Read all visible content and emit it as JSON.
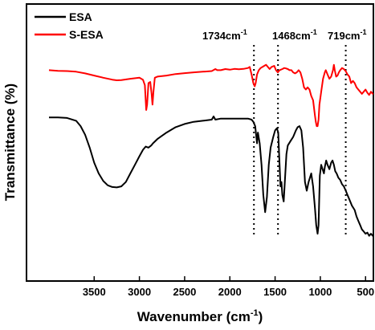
{
  "chart_data": {
    "type": "line",
    "xlabel": "Wavenumber (cm",
    "xlabel_sup": "-1",
    "xlabel_end": ")",
    "ylabel": "Transmittance (%)",
    "xlim": [
      4000,
      400
    ],
    "x_reversed": true,
    "y_ticks_shown": false,
    "xticks": [
      3500,
      3000,
      2500,
      2000,
      1500,
      1000,
      500
    ],
    "legend": {
      "placement": "top-left"
    },
    "annotations": [
      {
        "x": 1734,
        "label": "1734cm",
        "sup": "-1"
      },
      {
        "x": 1468,
        "label": "1468cm",
        "sup": "-1"
      },
      {
        "x": 719,
        "label": "719cm",
        "sup": "-1"
      }
    ],
    "series": [
      {
        "name": "ESA",
        "color": "#000000",
        "points": [
          [
            4000,
            62
          ],
          [
            3900,
            62
          ],
          [
            3800,
            61.8
          ],
          [
            3700,
            60.5
          ],
          [
            3650,
            58
          ],
          [
            3600,
            54
          ],
          [
            3550,
            48
          ],
          [
            3500,
            41
          ],
          [
            3450,
            36
          ],
          [
            3400,
            32.5
          ],
          [
            3350,
            30.5
          ],
          [
            3300,
            29.7
          ],
          [
            3250,
            29.5
          ],
          [
            3200,
            30
          ],
          [
            3150,
            32
          ],
          [
            3100,
            36
          ],
          [
            3050,
            40
          ],
          [
            3000,
            44
          ],
          [
            2960,
            47
          ],
          [
            2930,
            48.5
          ],
          [
            2900,
            48
          ],
          [
            2870,
            49
          ],
          [
            2850,
            50
          ],
          [
            2800,
            52
          ],
          [
            2700,
            55
          ],
          [
            2600,
            57.5
          ],
          [
            2500,
            59
          ],
          [
            2400,
            60
          ],
          [
            2300,
            60.5
          ],
          [
            2200,
            61
          ],
          [
            2180,
            62.5
          ],
          [
            2160,
            61
          ],
          [
            2100,
            61.5
          ],
          [
            2000,
            61.5
          ],
          [
            1900,
            61.5
          ],
          [
            1800,
            61.5
          ],
          [
            1760,
            61
          ],
          [
            1740,
            60
          ],
          [
            1720,
            58
          ],
          [
            1700,
            50
          ],
          [
            1690,
            55
          ],
          [
            1670,
            50
          ],
          [
            1650,
            40
          ],
          [
            1630,
            26
          ],
          [
            1610,
            18
          ],
          [
            1590,
            25
          ],
          [
            1570,
            40
          ],
          [
            1550,
            48
          ],
          [
            1520,
            53
          ],
          [
            1500,
            56
          ],
          [
            1480,
            57
          ],
          [
            1465,
            55
          ],
          [
            1455,
            44
          ],
          [
            1440,
            30
          ],
          [
            1430,
            32
          ],
          [
            1420,
            26
          ],
          [
            1405,
            23
          ],
          [
            1390,
            34
          ],
          [
            1375,
            45
          ],
          [
            1360,
            49
          ],
          [
            1330,
            51
          ],
          [
            1300,
            53
          ],
          [
            1270,
            56
          ],
          [
            1250,
            57.5
          ],
          [
            1230,
            58
          ],
          [
            1210,
            56
          ],
          [
            1190,
            48
          ],
          [
            1170,
            32
          ],
          [
            1150,
            28
          ],
          [
            1130,
            32
          ],
          [
            1100,
            36
          ],
          [
            1080,
            30
          ],
          [
            1060,
            20
          ],
          [
            1045,
            12
          ],
          [
            1030,
            8
          ],
          [
            1020,
            12
          ],
          [
            1005,
            35
          ],
          [
            990,
            40
          ],
          [
            975,
            38
          ],
          [
            960,
            36
          ],
          [
            950,
            39
          ],
          [
            935,
            42
          ],
          [
            920,
            40
          ],
          [
            900,
            38
          ],
          [
            880,
            41
          ],
          [
            865,
            42
          ],
          [
            850,
            40
          ],
          [
            835,
            37
          ],
          [
            820,
            36
          ],
          [
            800,
            34
          ],
          [
            780,
            33
          ],
          [
            760,
            31
          ],
          [
            740,
            30
          ],
          [
            719,
            28
          ],
          [
            700,
            26
          ],
          [
            680,
            24
          ],
          [
            650,
            21
          ],
          [
            620,
            19
          ],
          [
            600,
            16
          ],
          [
            580,
            14
          ],
          [
            560,
            12
          ],
          [
            540,
            10
          ],
          [
            520,
            9
          ],
          [
            500,
            8
          ],
          [
            480,
            8.5
          ],
          [
            460,
            7
          ],
          [
            440,
            8
          ],
          [
            420,
            7
          ],
          [
            400,
            7
          ]
        ]
      },
      {
        "name": "S-ESA",
        "color": "#ff0000",
        "points": [
          [
            4000,
            84
          ],
          [
            3900,
            83.7
          ],
          [
            3800,
            83.6
          ],
          [
            3700,
            83.3
          ],
          [
            3600,
            82.5
          ],
          [
            3500,
            81.5
          ],
          [
            3400,
            80.5
          ],
          [
            3300,
            79.6
          ],
          [
            3250,
            79.3
          ],
          [
            3200,
            79.4
          ],
          [
            3100,
            80
          ],
          [
            3000,
            80.5
          ],
          [
            2960,
            79.5
          ],
          [
            2940,
            77
          ],
          [
            2925,
            65.5
          ],
          [
            2915,
            68
          ],
          [
            2900,
            78
          ],
          [
            2880,
            78.5
          ],
          [
            2865,
            73
          ],
          [
            2855,
            68
          ],
          [
            2845,
            74
          ],
          [
            2830,
            80.5
          ],
          [
            2800,
            81
          ],
          [
            2700,
            81.5
          ],
          [
            2600,
            82.2
          ],
          [
            2500,
            82.6
          ],
          [
            2400,
            83
          ],
          [
            2300,
            83.3
          ],
          [
            2200,
            83.6
          ],
          [
            2160,
            84.5
          ],
          [
            2140,
            84
          ],
          [
            2100,
            84
          ],
          [
            2050,
            84.5
          ],
          [
            2000,
            84.2
          ],
          [
            1950,
            84.6
          ],
          [
            1900,
            84.4
          ],
          [
            1850,
            84.6
          ],
          [
            1800,
            85
          ],
          [
            1780,
            85.5
          ],
          [
            1760,
            82
          ],
          [
            1740,
            78
          ],
          [
            1725,
            76.5
          ],
          [
            1715,
            78
          ],
          [
            1700,
            82
          ],
          [
            1680,
            84
          ],
          [
            1660,
            85
          ],
          [
            1640,
            85.5
          ],
          [
            1620,
            86
          ],
          [
            1600,
            86.5
          ],
          [
            1580,
            85.5
          ],
          [
            1560,
            84.5
          ],
          [
            1540,
            85.5
          ],
          [
            1510,
            86
          ],
          [
            1490,
            84
          ],
          [
            1470,
            83
          ],
          [
            1450,
            84
          ],
          [
            1420,
            84.5
          ],
          [
            1400,
            85
          ],
          [
            1380,
            84.8
          ],
          [
            1360,
            84.5
          ],
          [
            1340,
            84
          ],
          [
            1320,
            84
          ],
          [
            1300,
            83
          ],
          [
            1280,
            82.5
          ],
          [
            1260,
            83
          ],
          [
            1240,
            84
          ],
          [
            1220,
            83
          ],
          [
            1200,
            80
          ],
          [
            1180,
            76
          ],
          [
            1160,
            75
          ],
          [
            1140,
            76
          ],
          [
            1120,
            75
          ],
          [
            1100,
            72
          ],
          [
            1080,
            70
          ],
          [
            1060,
            63
          ],
          [
            1050,
            60
          ],
          [
            1040,
            58
          ],
          [
            1030,
            58
          ],
          [
            1020,
            61
          ],
          [
            1010,
            68
          ],
          [
            990,
            74
          ],
          [
            970,
            80
          ],
          [
            950,
            83
          ],
          [
            940,
            84
          ],
          [
            920,
            82
          ],
          [
            900,
            80
          ],
          [
            880,
            81
          ],
          [
            860,
            84
          ],
          [
            850,
            86.5
          ],
          [
            840,
            84
          ],
          [
            825,
            81
          ],
          [
            810,
            81.5
          ],
          [
            795,
            83
          ],
          [
            780,
            84
          ],
          [
            760,
            85
          ],
          [
            740,
            84.5
          ],
          [
            719,
            83.5
          ],
          [
            700,
            82
          ],
          [
            680,
            81
          ],
          [
            660,
            78
          ],
          [
            640,
            79
          ],
          [
            620,
            78
          ],
          [
            600,
            76
          ],
          [
            580,
            75
          ],
          [
            560,
            74
          ],
          [
            540,
            73
          ],
          [
            520,
            74
          ],
          [
            500,
            75
          ],
          [
            480,
            73.5
          ],
          [
            460,
            72.5
          ],
          [
            440,
            74
          ],
          [
            420,
            73
          ],
          [
            400,
            73
          ]
        ]
      }
    ]
  }
}
